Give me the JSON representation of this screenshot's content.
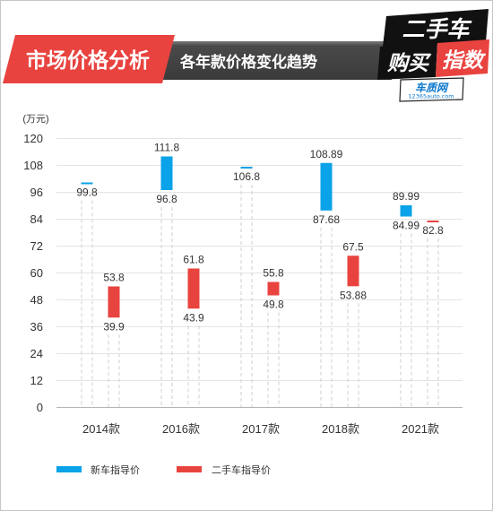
{
  "header": {
    "section_title": "市场价格分析",
    "subtitle": "各年款价格变化趋势",
    "accent_color": "#e8433f"
  },
  "logo": {
    "line1": "二手车",
    "line2a": "购买",
    "line2b": "指数",
    "brand": "车质网",
    "url": "12365auto.com"
  },
  "chart_data": {
    "type": "bar",
    "ylabel": "(万元)",
    "ylim": [
      0,
      120
    ],
    "yticks": [
      0,
      12,
      24,
      36,
      48,
      60,
      72,
      84,
      96,
      108,
      120
    ],
    "grid": true,
    "legend_position": "bottom-left",
    "categories": [
      "2014款",
      "2016款",
      "2017款",
      "2018款",
      "2021款"
    ],
    "series": [
      {
        "name": "新车指导价",
        "color": "#0aa2e8",
        "low": [
          99.8,
          96.8,
          106.8,
          87.68,
          84.99
        ],
        "high": [
          99.8,
          111.8,
          106.8,
          108.89,
          89.99
        ]
      },
      {
        "name": "二手车指导价",
        "color": "#e8433f",
        "low": [
          39.9,
          43.9,
          49.8,
          53.88,
          82.8
        ],
        "high": [
          53.8,
          61.8,
          55.8,
          67.5,
          82.8
        ]
      }
    ]
  }
}
